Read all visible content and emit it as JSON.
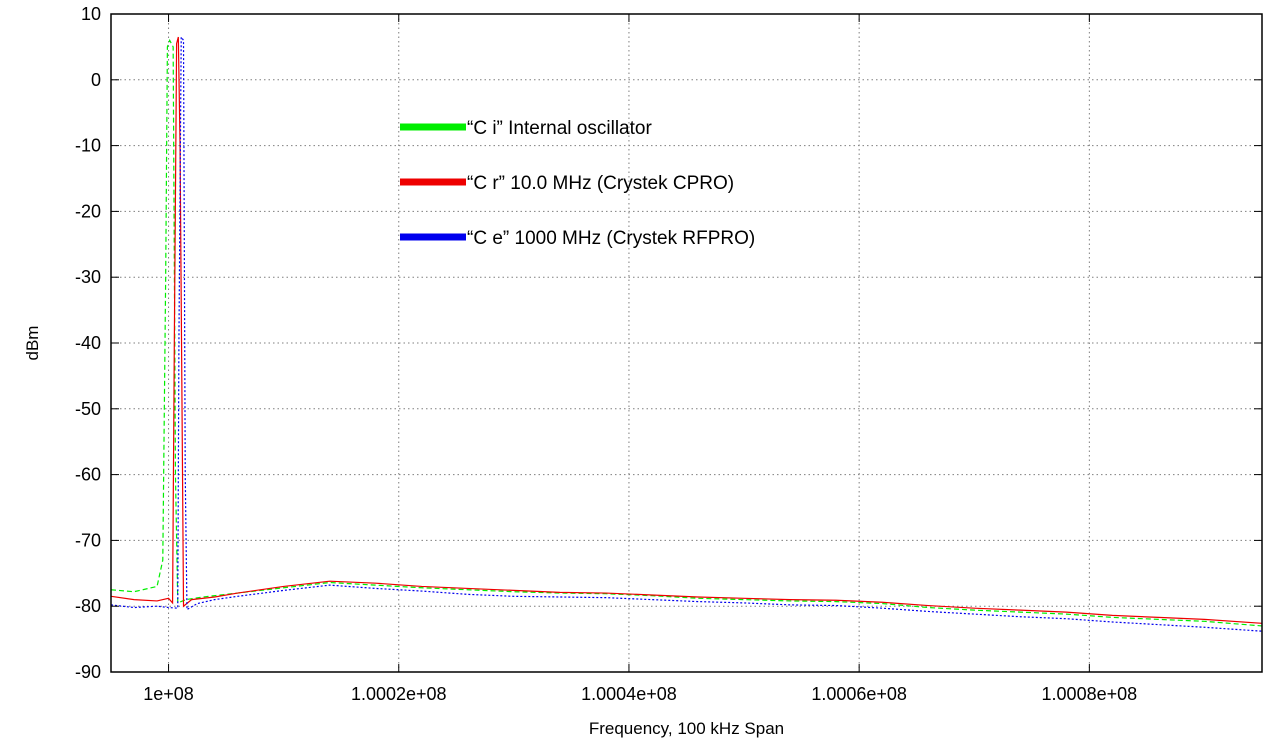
{
  "chart_data": {
    "type": "line",
    "title": "",
    "xlabel": "Frequency, 100 kHz Span",
    "ylabel": "dBm",
    "xlim": [
      99995000,
      100095000
    ],
    "ylim": [
      -90,
      10
    ],
    "x_ticks": [
      {
        "value": 100000000,
        "label": "1e+08"
      },
      {
        "value": 100020000,
        "label": "1.0002e+08"
      },
      {
        "value": 100040000,
        "label": "1.0004e+08"
      },
      {
        "value": 100060000,
        "label": "1.0006e+08"
      },
      {
        "value": 100080000,
        "label": "1.0008e+08"
      }
    ],
    "y_ticks": [
      10,
      0,
      -10,
      -20,
      -30,
      -40,
      -50,
      -60,
      -70,
      -80,
      -90
    ],
    "grid": true,
    "legend_position": "upper-center",
    "series": [
      {
        "name": "“C i” Internal oscillator",
        "color": "#00ee00",
        "style": "dashed",
        "points": [
          [
            99995000,
            -77.5
          ],
          [
            99997000,
            -77.8
          ],
          [
            99999000,
            -77.0
          ],
          [
            99999500,
            -73
          ],
          [
            99999750,
            -30
          ],
          [
            99999900,
            5
          ],
          [
            100000100,
            6
          ],
          [
            100000400,
            5
          ],
          [
            100000600,
            -60
          ],
          [
            100000800,
            -79.5
          ],
          [
            100001500,
            -79.0
          ],
          [
            100003000,
            -78.6
          ],
          [
            100006000,
            -78.0
          ],
          [
            100010000,
            -77.2
          ],
          [
            100014000,
            -76.4
          ],
          [
            100018000,
            -76.8
          ],
          [
            100022000,
            -77.2
          ],
          [
            100026000,
            -77.5
          ],
          [
            100030000,
            -77.8
          ],
          [
            100034000,
            -78.0
          ],
          [
            100038000,
            -78.1
          ],
          [
            100042000,
            -78.4
          ],
          [
            100046000,
            -78.8
          ],
          [
            100050000,
            -79.0
          ],
          [
            100054000,
            -79.2
          ],
          [
            100058000,
            -79.3
          ],
          [
            100062000,
            -79.6
          ],
          [
            100066000,
            -80.2
          ],
          [
            100070000,
            -80.6
          ],
          [
            100074000,
            -80.9
          ],
          [
            100078000,
            -81.2
          ],
          [
            100082000,
            -81.7
          ],
          [
            100086000,
            -82.0
          ],
          [
            100090000,
            -82.3
          ],
          [
            100095000,
            -83.0
          ]
        ]
      },
      {
        "name": "“C r” 10.0 MHz (Crystek CPRO)",
        "color": "#ee0000",
        "style": "solid",
        "points": [
          [
            99995000,
            -78.5
          ],
          [
            99997000,
            -79.0
          ],
          [
            99999000,
            -79.2
          ],
          [
            100000000,
            -78.8
          ],
          [
            100000350,
            -79.5
          ],
          [
            100000500,
            -40
          ],
          [
            100000700,
            5.5
          ],
          [
            100000850,
            6.5
          ],
          [
            100001000,
            -10
          ],
          [
            100001300,
            -80.0
          ],
          [
            100002000,
            -79.0
          ],
          [
            100004000,
            -78.6
          ],
          [
            100006000,
            -78.0
          ],
          [
            100010000,
            -77.0
          ],
          [
            100014000,
            -76.2
          ],
          [
            100018000,
            -76.5
          ],
          [
            100022000,
            -77.0
          ],
          [
            100026000,
            -77.3
          ],
          [
            100030000,
            -77.6
          ],
          [
            100034000,
            -77.9
          ],
          [
            100038000,
            -78.0
          ],
          [
            100042000,
            -78.3
          ],
          [
            100046000,
            -78.6
          ],
          [
            100050000,
            -78.8
          ],
          [
            100054000,
            -79.0
          ],
          [
            100058000,
            -79.1
          ],
          [
            100062000,
            -79.4
          ],
          [
            100066000,
            -79.9
          ],
          [
            100070000,
            -80.3
          ],
          [
            100074000,
            -80.6
          ],
          [
            100078000,
            -80.9
          ],
          [
            100082000,
            -81.4
          ],
          [
            100086000,
            -81.7
          ],
          [
            100090000,
            -82.0
          ],
          [
            100095000,
            -82.6
          ]
        ]
      },
      {
        "name": "“C e” 1000 MHz (Crystek RFPRO)",
        "color": "#0000ee",
        "style": "dotted",
        "points": [
          [
            99995000,
            -79.8
          ],
          [
            99997000,
            -80.2
          ],
          [
            99999000,
            -80.0
          ],
          [
            100000000,
            -80.2
          ],
          [
            100000800,
            -80.3
          ],
          [
            100000900,
            -40
          ],
          [
            100001100,
            6.5
          ],
          [
            100001300,
            6.0
          ],
          [
            100001450,
            -60
          ],
          [
            100001600,
            -80.5
          ],
          [
            100002500,
            -79.6
          ],
          [
            100004000,
            -79.0
          ],
          [
            100006000,
            -78.5
          ],
          [
            100010000,
            -77.6
          ],
          [
            100014000,
            -76.8
          ],
          [
            100018000,
            -77.3
          ],
          [
            100022000,
            -77.7
          ],
          [
            100026000,
            -78.2
          ],
          [
            100030000,
            -78.5
          ],
          [
            100034000,
            -78.6
          ],
          [
            100038000,
            -78.7
          ],
          [
            100042000,
            -79.0
          ],
          [
            100046000,
            -79.3
          ],
          [
            100050000,
            -79.5
          ],
          [
            100054000,
            -79.8
          ],
          [
            100058000,
            -79.9
          ],
          [
            100062000,
            -80.3
          ],
          [
            100066000,
            -80.8
          ],
          [
            100070000,
            -81.2
          ],
          [
            100074000,
            -81.6
          ],
          [
            100078000,
            -81.9
          ],
          [
            100082000,
            -82.4
          ],
          [
            100086000,
            -82.8
          ],
          [
            100090000,
            -83.2
          ],
          [
            100095000,
            -83.8
          ]
        ]
      }
    ]
  }
}
